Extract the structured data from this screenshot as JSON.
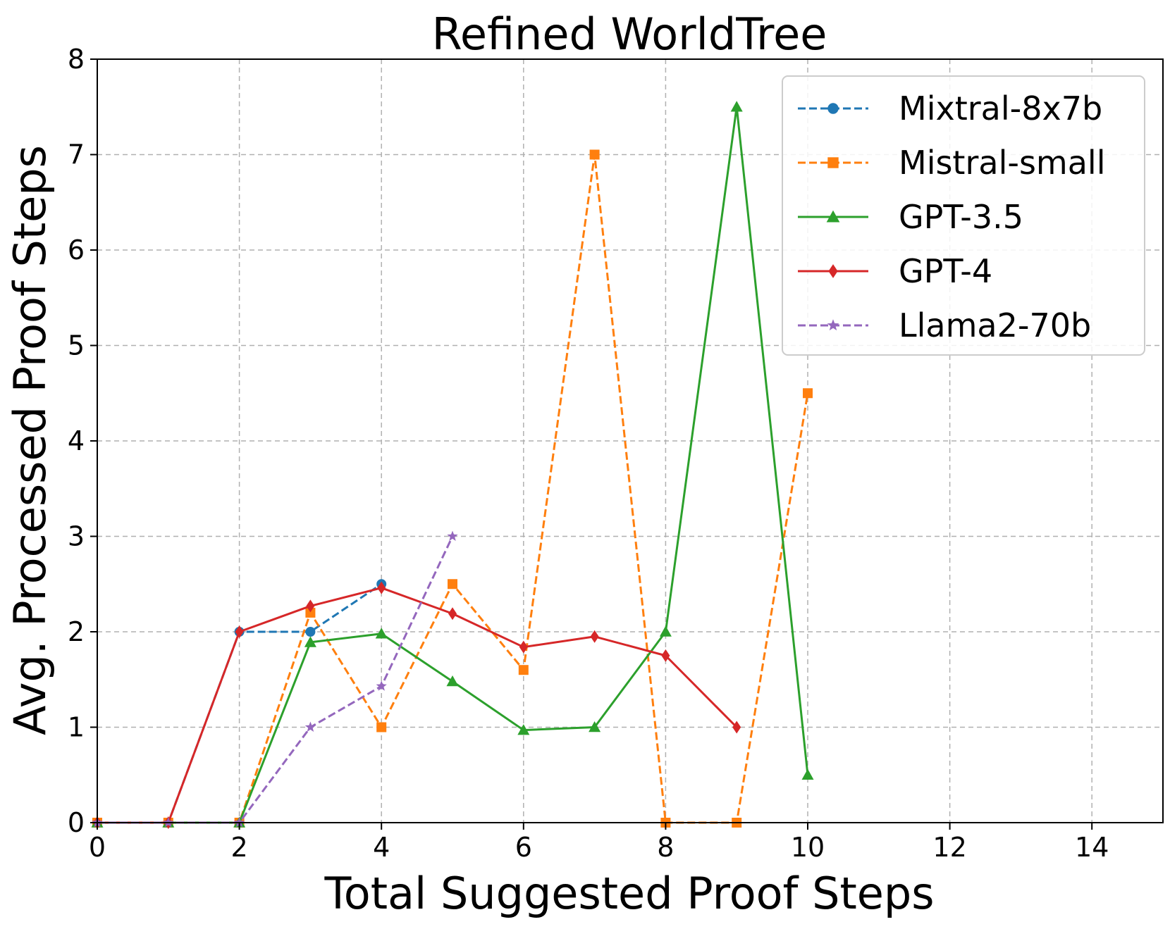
{
  "chart_data": {
    "type": "line",
    "title": "Refined WorldTree",
    "xlabel": "Total Suggested Proof Steps",
    "ylabel": "Avg. Processed Proof Steps",
    "xlim": [
      0,
      15
    ],
    "ylim": [
      0,
      8
    ],
    "xticks": [
      0,
      2,
      4,
      6,
      8,
      10,
      12,
      14
    ],
    "yticks": [
      0,
      1,
      2,
      3,
      4,
      5,
      6,
      7,
      8
    ],
    "grid": true,
    "legend_position": "top-right",
    "series": [
      {
        "name": "Mixtral-8x7b",
        "color": "#1f77b4",
        "linestyle": "dashed",
        "marker": "circle",
        "points": [
          [
            0,
            0
          ],
          [
            1,
            0
          ],
          [
            2,
            2
          ],
          [
            3,
            2
          ],
          [
            4,
            2.5
          ]
        ]
      },
      {
        "name": "Mistral-small",
        "color": "#ff7f0e",
        "linestyle": "dashed",
        "marker": "square",
        "points": [
          [
            0,
            0
          ],
          [
            1,
            0
          ],
          [
            2,
            0
          ],
          [
            3,
            2.2
          ],
          [
            4,
            1
          ],
          [
            5,
            2.5
          ],
          [
            6,
            1.6
          ],
          [
            7,
            7
          ],
          [
            8,
            0
          ],
          [
            9,
            0
          ],
          [
            10,
            4.5
          ]
        ]
      },
      {
        "name": "GPT-3.5",
        "color": "#2ca02c",
        "linestyle": "solid",
        "marker": "triangle",
        "points": [
          [
            0,
            0
          ],
          [
            1,
            0
          ],
          [
            2,
            0
          ],
          [
            3,
            1.89
          ],
          [
            4,
            1.98
          ],
          [
            5,
            1.48
          ],
          [
            6,
            0.97
          ],
          [
            7,
            1
          ],
          [
            8,
            2
          ],
          [
            9,
            7.5
          ],
          [
            10,
            0.5
          ]
        ]
      },
      {
        "name": "GPT-4",
        "color": "#d62728",
        "linestyle": "solid",
        "marker": "diamond",
        "points": [
          [
            0,
            0
          ],
          [
            1,
            0
          ],
          [
            2,
            2
          ],
          [
            3,
            2.27
          ],
          [
            4,
            2.46
          ],
          [
            5,
            2.19
          ],
          [
            6,
            1.84
          ],
          [
            7,
            1.95
          ],
          [
            8,
            1.75
          ],
          [
            9,
            1
          ]
        ]
      },
      {
        "name": "Llama2-70b",
        "color": "#9467bd",
        "linestyle": "dashed",
        "marker": "star",
        "points": [
          [
            0,
            0
          ],
          [
            1,
            0
          ],
          [
            2,
            0
          ],
          [
            3,
            1
          ],
          [
            4,
            1.43
          ],
          [
            5,
            3
          ]
        ]
      }
    ]
  }
}
